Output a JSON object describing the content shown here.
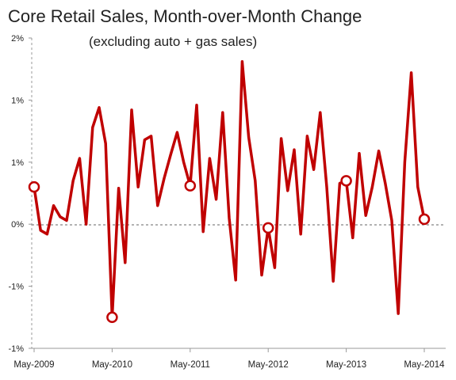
{
  "chart_data": {
    "type": "line",
    "title": "Core Retail Sales, Month-over-Month Change",
    "subtitle": "(excluding auto + gas sales)",
    "xlabel": "",
    "ylabel": "",
    "ylim": [
      -1.0,
      1.5
    ],
    "y_ticks": [
      -1.0,
      -0.5,
      0.0,
      0.5,
      1.0,
      1.5
    ],
    "y_tick_labels": [
      "-1%",
      "-1%",
      "0%",
      "1%",
      "1%",
      "2%"
    ],
    "x_ticks": [
      {
        "index": 0,
        "label": "May-2009"
      },
      {
        "index": 12,
        "label": "May-2010"
      },
      {
        "index": 24,
        "label": "May-2011"
      },
      {
        "index": 36,
        "label": "May-2012"
      },
      {
        "index": 48,
        "label": "May-2013"
      },
      {
        "index": 60,
        "label": "May-2014"
      }
    ],
    "grid": false,
    "zero_line": "dashed",
    "line_color": "#c00000",
    "series": [
      {
        "values": [
          0.3,
          -0.05,
          -0.08,
          0.15,
          0.06,
          0.03,
          0.35,
          0.53,
          0.0,
          0.78,
          0.94,
          0.65,
          -0.75,
          0.29,
          -0.31,
          0.92,
          0.3,
          0.68,
          0.71,
          0.15,
          0.37,
          0.56,
          0.74,
          0.5,
          0.31,
          0.96,
          -0.06,
          0.53,
          0.2,
          0.9,
          0.05,
          -0.45,
          1.31,
          0.7,
          0.35,
          -0.41,
          -0.03,
          -0.35,
          0.69,
          0.27,
          0.6,
          -0.08,
          0.71,
          0.44,
          0.9,
          0.3,
          -0.46,
          0.33,
          0.35,
          -0.11,
          0.57,
          0.07,
          0.3,
          0.59,
          0.33,
          0.03,
          -0.72,
          0.5,
          1.22,
          0.3,
          0.04
        ]
      }
    ],
    "highlighted_points": [
      0,
      12,
      24,
      36,
      48,
      60
    ]
  }
}
